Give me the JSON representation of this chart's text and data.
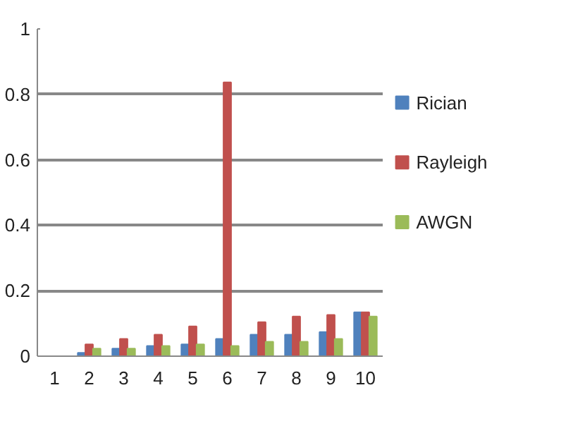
{
  "chart_data": {
    "type": "bar",
    "categories": [
      "1",
      "2",
      "3",
      "4",
      "5",
      "6",
      "7",
      "8",
      "9",
      "10"
    ],
    "ylim": [
      0,
      1
    ],
    "yticks": [
      0,
      0.2,
      0.4,
      0.6,
      0.8,
      1
    ],
    "grid": "y",
    "legend": "right",
    "series": [
      {
        "name": "Rician",
        "color": "#4f81bd",
        "values": [
          0,
          0.01,
          0.023,
          0.031,
          0.036,
          0.053,
          0.066,
          0.066,
          0.074,
          0.134
        ]
      },
      {
        "name": "Rayleigh",
        "color": "#c0504d",
        "values": [
          0,
          0.036,
          0.053,
          0.066,
          0.091,
          0.837,
          0.104,
          0.121,
          0.126,
          0.134
        ]
      },
      {
        "name": "AWGN",
        "color": "#9bbb59",
        "values": [
          0,
          0.023,
          0.023,
          0.031,
          0.036,
          0.031,
          0.044,
          0.044,
          0.053,
          0.121
        ]
      }
    ]
  }
}
